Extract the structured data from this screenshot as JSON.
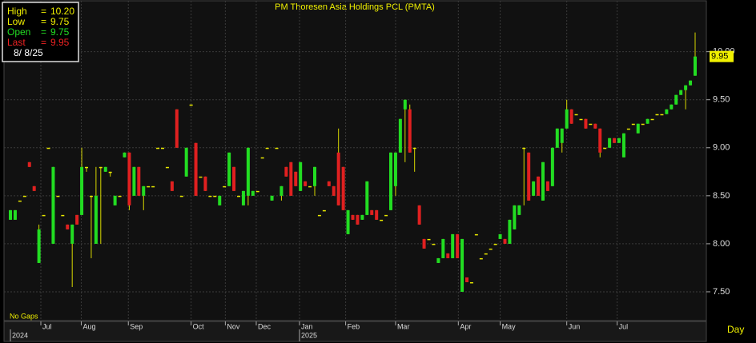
{
  "chart_data": {
    "type": "candlestick",
    "title": "PM Thoresen Asia Holdings PCL (PMTA)",
    "legend": {
      "items": [
        {
          "label": "High",
          "sep": "=",
          "value": "10.20",
          "color": "#f0f000"
        },
        {
          "label": "Low",
          "sep": "=",
          "value": "9.75",
          "color": "#f0f000"
        },
        {
          "label": "Open",
          "sep": "=",
          "value": "9.75",
          "color": "#22dd22"
        },
        {
          "label": "Last",
          "sep": "=",
          "value": "9.95",
          "color": "#ee2222"
        }
      ],
      "date": "8/ 8/25"
    },
    "last_label": {
      "value": 9.95,
      "label": "9.95"
    },
    "note": "No Gaps",
    "period": "Day",
    "ylim": [
      7.2,
      10.53
    ],
    "yticks": [
      {
        "value": 7.5,
        "label": "7.50"
      },
      {
        "value": 8,
        "label": "8.00"
      },
      {
        "value": 8.5,
        "label": "8.50"
      },
      {
        "value": 9,
        "label": "9.00"
      },
      {
        "value": 9.5,
        "label": "9.50"
      },
      {
        "value": 10,
        "label": "10.00"
      }
    ],
    "xticks": [
      {
        "value": 6.4,
        "label": "Jul"
      },
      {
        "value": 14.9,
        "label": "Aug"
      },
      {
        "value": 24.8,
        "label": "Sep"
      },
      {
        "value": 38,
        "label": "Oct"
      },
      {
        "value": 45.2,
        "label": "Nov"
      },
      {
        "value": 51.7,
        "label": "Dec"
      },
      {
        "value": 60.8,
        "label": "Jan"
      },
      {
        "value": 70.5,
        "label": "Feb"
      },
      {
        "value": 81,
        "label": "Mar"
      },
      {
        "value": 94.2,
        "label": "Apr"
      },
      {
        "value": 103,
        "label": "May"
      },
      {
        "value": 117,
        "label": "Jun"
      },
      {
        "value": 127.6,
        "label": "Jul"
      }
    ],
    "years": [
      {
        "value": 0,
        "label": "2024"
      },
      {
        "value": 60.8,
        "label": "2025"
      }
    ],
    "grid": true,
    "colors": {
      "up": "#22dd22",
      "down": "#e02020",
      "flat": "#e8e800",
      "wick": "#d8d800"
    },
    "ohlc": [
      [
        8.25,
        8.35,
        8.25,
        8.35
      ],
      [
        8.25,
        8.35,
        8.25,
        8.35
      ],
      [
        8.45,
        8.45,
        8.45,
        8.45
      ],
      [
        8.5,
        8.5,
        8.5,
        8.5
      ],
      [
        8.85,
        8.85,
        8.8,
        8.8
      ],
      [
        8.6,
        8.6,
        8.55,
        8.55
      ],
      [
        7.8,
        8.2,
        7.8,
        8.15
      ],
      [
        8.3,
        8.3,
        8.3,
        8.3
      ],
      [
        9,
        9,
        9,
        9
      ],
      [
        8,
        8.8,
        8,
        8.8
      ],
      [
        8.5,
        8.5,
        8.5,
        8.5
      ],
      [
        8.3,
        8.3,
        8.3,
        8.3
      ],
      [
        8.2,
        8.2,
        8.15,
        8.15
      ],
      [
        8,
        8.2,
        7.55,
        8.2
      ],
      [
        8.3,
        8.3,
        8.2,
        8.2
      ],
      [
        8.3,
        9,
        8.3,
        8.8
      ],
      [
        8.8,
        8.8,
        8.75,
        8.8
      ],
      [
        8.5,
        8.5,
        7.85,
        8.5
      ],
      [
        8,
        8.8,
        8,
        8.5
      ],
      [
        8.8,
        8.8,
        8,
        8.8
      ],
      [
        8.75,
        8.8,
        8.75,
        8.8
      ],
      [
        8.75,
        8.75,
        8.7,
        8.75
      ],
      [
        8.4,
        8.5,
        8.4,
        8.5
      ],
      [
        8.5,
        8.5,
        8.5,
        8.5
      ],
      [
        8.9,
        8.95,
        8.9,
        8.95
      ],
      [
        8.95,
        8.95,
        8.35,
        8.4
      ],
      [
        8.5,
        8.8,
        8.5,
        8.8
      ],
      [
        8.8,
        8.8,
        8.5,
        8.5
      ],
      [
        8.5,
        8.6,
        8.35,
        8.6
      ],
      [
        8.6,
        8.6,
        8.6,
        8.6
      ],
      [
        8.6,
        8.6,
        8.6,
        8.6
      ],
      [
        9,
        9,
        9,
        9
      ],
      [
        9,
        9,
        9,
        9
      ],
      [
        8.8,
        8.8,
        8.8,
        8.8
      ],
      [
        8.65,
        8.65,
        8.55,
        8.55
      ],
      [
        9.4,
        9.4,
        9,
        9
      ],
      [
        8.5,
        8.5,
        8.5,
        8.5
      ],
      [
        8.7,
        9,
        8.7,
        9
      ],
      [
        9.45,
        9.45,
        9.45,
        9.45
      ],
      [
        9.05,
        9.05,
        8.5,
        8.5
      ],
      [
        8.7,
        8.7,
        8.7,
        8.7
      ],
      [
        8.7,
        8.7,
        8.55,
        8.55
      ],
      [
        8.5,
        8.5,
        8.5,
        8.5
      ],
      [
        8.5,
        8.5,
        8.5,
        8.5
      ],
      [
        8.4,
        8.5,
        8.4,
        8.5
      ],
      [
        8.6,
        8.6,
        8.6,
        8.6
      ],
      [
        8.6,
        8.95,
        8.6,
        8.95
      ],
      [
        8.8,
        8.8,
        8.55,
        8.55
      ],
      [
        8.5,
        8.5,
        8.5,
        8.5
      ],
      [
        8.4,
        8.55,
        8.4,
        8.55
      ],
      [
        8.5,
        9,
        8.4,
        9
      ],
      [
        8.5,
        8.55,
        8.5,
        8.55
      ],
      [
        8.55,
        8.55,
        8.55,
        8.55
      ],
      [
        8.9,
        8.9,
        8.9,
        8.9
      ],
      [
        9,
        9,
        9,
        9
      ],
      [
        8.45,
        8.5,
        8.45,
        8.5
      ],
      [
        9,
        9,
        9,
        9
      ],
      [
        8.5,
        8.6,
        8.45,
        8.6
      ],
      [
        8.8,
        8.8,
        8.7,
        8.7
      ],
      [
        8.85,
        8.85,
        8.5,
        8.5
      ],
      [
        8.75,
        8.75,
        8.6,
        8.6
      ],
      [
        8.55,
        8.85,
        8.55,
        8.85
      ],
      [
        8.65,
        8.65,
        8.6,
        8.6
      ],
      [
        8.6,
        8.6,
        8.6,
        8.6
      ],
      [
        8.6,
        8.8,
        8.5,
        8.8
      ],
      [
        8.3,
        8.3,
        8.3,
        8.3
      ],
      [
        8.35,
        8.35,
        8.35,
        8.35
      ],
      [
        8.65,
        8.65,
        8.6,
        8.6
      ],
      [
        8.6,
        8.6,
        8.5,
        8.5
      ],
      [
        8.95,
        9.2,
        8.4,
        8.4
      ],
      [
        8.8,
        8.8,
        8.35,
        8.35
      ],
      [
        8.1,
        8.35,
        8.1,
        8.35
      ],
      [
        8.3,
        8.3,
        8.25,
        8.25
      ],
      [
        8.3,
        8.3,
        8.2,
        8.2
      ],
      [
        8.25,
        8.3,
        8.25,
        8.3
      ],
      [
        8.3,
        8.65,
        8.3,
        8.65
      ],
      [
        8.35,
        8.35,
        8.3,
        8.3
      ],
      [
        8.35,
        8.35,
        8.25,
        8.25
      ],
      [
        8.25,
        8.25,
        8.25,
        8.25
      ],
      [
        8.3,
        8.3,
        8.3,
        8.3
      ],
      [
        8.35,
        8.95,
        8.35,
        8.95
      ],
      [
        8.6,
        8.95,
        8.5,
        8.95
      ],
      [
        8.95,
        9.3,
        8.95,
        9.3
      ],
      [
        9.4,
        9.5,
        8.85,
        9.5
      ],
      [
        9.4,
        9.45,
        8.95,
        8.95
      ],
      [
        9,
        9,
        8.75,
        9
      ],
      [
        8.4,
        8.4,
        8.2,
        8.2
      ],
      [
        8.05,
        8.05,
        7.95,
        7.95
      ],
      [
        8.05,
        8.05,
        8.05,
        8.05
      ],
      [
        8,
        8,
        8,
        8
      ],
      [
        7.8,
        7.85,
        7.8,
        7.85
      ],
      [
        7.85,
        8.05,
        7.85,
        8.05
      ],
      [
        7.9,
        7.9,
        7.85,
        7.85
      ],
      [
        7.85,
        8.1,
        7.85,
        8.1
      ],
      [
        8.1,
        8.1,
        7.85,
        7.85
      ],
      [
        7.5,
        8.05,
        7.5,
        8.05
      ],
      [
        7.65,
        7.65,
        7.6,
        7.6
      ],
      [
        7.6,
        7.6,
        7.6,
        7.6
      ],
      [
        8.1,
        8.1,
        8.1,
        8.1
      ],
      [
        7.85,
        7.85,
        7.85,
        7.85
      ],
      [
        7.9,
        7.9,
        7.9,
        7.9
      ],
      [
        7.95,
        7.95,
        7.95,
        7.95
      ],
      [
        8,
        8,
        8,
        8
      ],
      [
        8.05,
        8.1,
        8.05,
        8.1
      ],
      [
        8.05,
        8.05,
        8,
        8
      ],
      [
        8,
        8.25,
        8,
        8.25
      ],
      [
        8.15,
        8.4,
        8.15,
        8.4
      ],
      [
        8.3,
        8.4,
        8.3,
        8.4
      ],
      [
        9,
        9,
        8.4,
        9
      ],
      [
        8.95,
        8.95,
        8.45,
        8.45
      ],
      [
        8.5,
        8.65,
        8.5,
        8.65
      ],
      [
        8.7,
        8.7,
        8.5,
        8.5
      ],
      [
        8.45,
        8.85,
        8.45,
        8.85
      ],
      [
        8.65,
        8.65,
        8.55,
        8.55
      ],
      [
        8.6,
        9,
        8.6,
        9
      ],
      [
        9,
        9.2,
        9,
        9.2
      ],
      [
        9.05,
        9.2,
        8.95,
        9.2
      ],
      [
        9.2,
        9.5,
        9.2,
        9.4
      ],
      [
        9.4,
        9.4,
        9.25,
        9.25
      ],
      [
        9.35,
        9.35,
        9.35,
        9.35
      ],
      [
        9.3,
        9.3,
        9.3,
        9.3
      ],
      [
        9.3,
        9.3,
        9.2,
        9.2
      ],
      [
        9.25,
        9.25,
        9.25,
        9.25
      ],
      [
        9.25,
        9.25,
        9.2,
        9.2
      ],
      [
        9.2,
        9.2,
        8.9,
        8.95
      ],
      [
        9,
        9,
        9,
        9
      ],
      [
        9,
        9.1,
        9,
        9.1
      ],
      [
        9.1,
        9.1,
        9.05,
        9.05
      ],
      [
        9.05,
        9.1,
        9.05,
        9.1
      ],
      [
        8.9,
        9.15,
        8.9,
        9.15
      ],
      [
        9.2,
        9.2,
        9.2,
        9.2
      ],
      [
        9.25,
        9.25,
        9.25,
        9.25
      ],
      [
        9.15,
        9.25,
        9.15,
        9.25
      ],
      [
        9.25,
        9.25,
        9.25,
        9.25
      ],
      [
        9.25,
        9.3,
        9.25,
        9.3
      ],
      [
        9.3,
        9.3,
        9.3,
        9.3
      ],
      [
        9.35,
        9.35,
        9.35,
        9.35
      ],
      [
        9.35,
        9.35,
        9.35,
        9.35
      ],
      [
        9.35,
        9.4,
        9.35,
        9.4
      ],
      [
        9.4,
        9.45,
        9.4,
        9.45
      ],
      [
        9.45,
        9.55,
        9.45,
        9.55
      ],
      [
        9.55,
        9.6,
        9.55,
        9.6
      ],
      [
        9.6,
        9.65,
        9.4,
        9.65
      ],
      [
        9.65,
        9.7,
        9.65,
        9.7
      ],
      [
        9.75,
        10.2,
        9.75,
        9.95
      ]
    ]
  }
}
